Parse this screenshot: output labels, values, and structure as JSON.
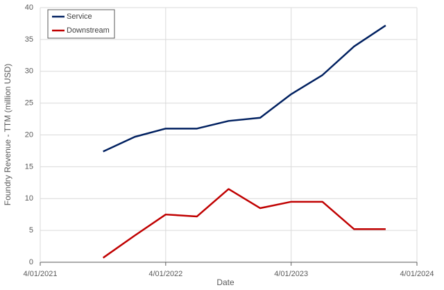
{
  "chart_data": {
    "type": "line",
    "x_label": "Date",
    "y_label": "Foundry Revenue - TTM (million USD)",
    "x": [
      "2021-10-01",
      "2022-01-01",
      "2022-04-01",
      "2022-07-01",
      "2022-10-01",
      "2023-01-01",
      "2023-04-01",
      "2023-07-01",
      "2023-10-01",
      "2024-01-01"
    ],
    "series": [
      {
        "name": "Service",
        "color": "#002060",
        "values": [
          17.4,
          19.7,
          21.0,
          21.0,
          22.2,
          22.7,
          26.4,
          29.4,
          33.9,
          37.2
        ]
      },
      {
        "name": "Downstream",
        "color": "#c00000",
        "values": [
          0.7,
          4.2,
          7.5,
          7.2,
          11.5,
          8.5,
          9.5,
          9.5,
          5.2,
          5.2
        ]
      }
    ],
    "xlim": [
      "2021-04-01",
      "2024-04-01"
    ],
    "xticks": [
      {
        "value": "2021-04-01",
        "label": "4/01/2021"
      },
      {
        "value": "2022-04-01",
        "label": "4/01/2022"
      },
      {
        "value": "2023-04-01",
        "label": "4/01/2023"
      },
      {
        "value": "2024-04-01",
        "label": "4/01/2024"
      }
    ],
    "ylim": [
      0,
      40
    ],
    "yticks": [
      0,
      5,
      10,
      15,
      20,
      25,
      30,
      35,
      40
    ],
    "grid": true,
    "legend": "top-left"
  }
}
